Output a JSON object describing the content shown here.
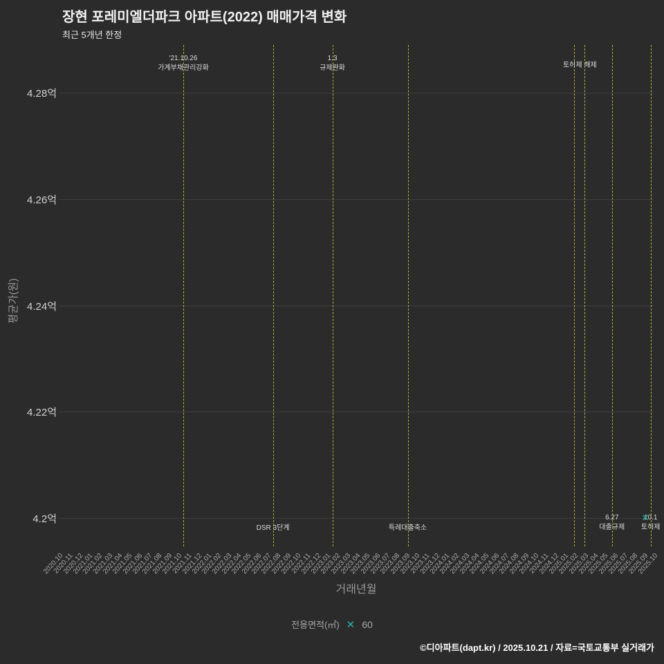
{
  "header": {
    "title": "장현 포레미엘더파크 아파트(2022) 매매가격 변화",
    "subtitle": "최근 5개년 한정"
  },
  "chart_data": {
    "type": "scatter",
    "title": "장현 포레미엘더파크 아파트(2022) 매매가격 변화",
    "subtitle": "최근 5개년 한정",
    "xlabel": "거래년월",
    "ylabel": "평균가(원)",
    "ylim": [
      4.194,
      4.289
    ],
    "grid": "horizontal",
    "y_ticks": [
      {
        "label": "4.28억",
        "value": 4.28
      },
      {
        "label": "4.26억",
        "value": 4.26
      },
      {
        "label": "4.24억",
        "value": 4.24
      },
      {
        "label": "4.22억",
        "value": 4.22
      },
      {
        "label": "4.2억",
        "value": 4.2
      }
    ],
    "x_ticks": [
      "2020.10",
      "2020.11",
      "2020.12",
      "2021.01",
      "2021.02",
      "2021.03",
      "2021.04",
      "2021.05",
      "2021.06",
      "2021.07",
      "2021.08",
      "2021.09",
      "2021.10",
      "2021.11",
      "2021.12",
      "2022.01",
      "2022.02",
      "2022.03",
      "2022.04",
      "2022.05",
      "2022.06",
      "2022.07",
      "2022.08",
      "2022.09",
      "2022.10",
      "2022.11",
      "2022.12",
      "2023.01",
      "2023.02",
      "2023.03",
      "2023.04",
      "2023.05",
      "2023.06",
      "2023.07",
      "2023.08",
      "2023.09",
      "2023.10",
      "2023.11",
      "2023.12",
      "2024.01",
      "2024.02",
      "2024.03",
      "2024.04",
      "2024.05",
      "2024.06",
      "2024.07",
      "2024.08",
      "2024.09",
      "2024.10",
      "2024.11",
      "2024.12",
      "2025.01",
      "2025.02",
      "2025.03",
      "2025.04",
      "2025.05",
      "2025.06",
      "2025.07",
      "2025.08",
      "2025.09",
      "2025.10"
    ],
    "series": [
      {
        "name": "60",
        "marker": "✕",
        "marker_color": "#2ab0a8",
        "points": [
          {
            "x": "2025.09",
            "xi": 59.2,
            "y": 4.2,
            "y_label": "4.2억"
          }
        ]
      }
    ],
    "events": [
      {
        "xi": 12.56,
        "pos": "top",
        "dx": 0,
        "lines": [
          "'21.10.26",
          "가계부채관리강화"
        ]
      },
      {
        "xi": 21.6,
        "pos": "bottom",
        "dx": 0,
        "lines": [
          "DSR 3단계"
        ]
      },
      {
        "xi": 27.6,
        "pos": "top",
        "dx": 0,
        "lines": [
          "1.3",
          "규제완화"
        ]
      },
      {
        "xi": 35.2,
        "pos": "bottom",
        "dx": 0,
        "lines": [
          "특례대출축소"
        ]
      },
      {
        "xi": 52.0,
        "pos": "top",
        "dx": 8,
        "lines": [
          "토허제 해제"
        ]
      },
      {
        "xi": 53.0,
        "pos": "top",
        "dx": 0,
        "lines": []
      },
      {
        "xi": 55.8,
        "pos": "bottom",
        "dx": 0,
        "lines": [
          "6.27",
          "대출규제"
        ]
      },
      {
        "xi": 59.7,
        "pos": "bottom",
        "dx": 0,
        "lines": [
          "10.1",
          "토허제"
        ]
      }
    ],
    "event_line_color": "#b2b236"
  },
  "legend": {
    "label": "전용면적(㎡)",
    "items": [
      {
        "name": "60",
        "marker": "✕",
        "color": "#2ab0a8"
      }
    ]
  },
  "footer": {
    "credit": "©디아파트(dapt.kr) / 2025.10.21 / 자료=국토교통부 실거래가"
  }
}
